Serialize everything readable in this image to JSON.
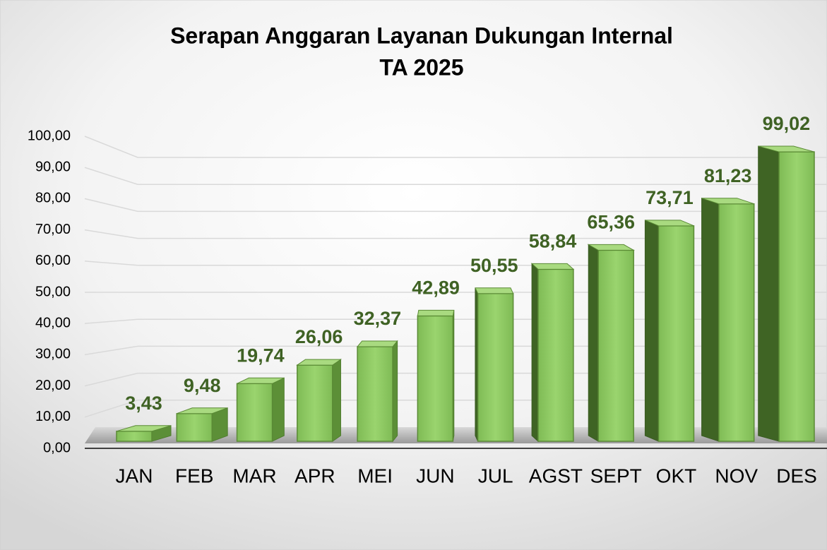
{
  "chart_data": {
    "type": "bar",
    "title": "Serapan Anggaran Layanan Dukungan Internal",
    "subtitle": "TA 2025",
    "categories": [
      "JAN",
      "FEB",
      "MAR",
      "APR",
      "MEI",
      "JUN",
      "JUL",
      "AGST",
      "SEPT",
      "OKT",
      "NOV",
      "DES"
    ],
    "values": [
      3.43,
      9.48,
      19.74,
      26.06,
      32.37,
      42.89,
      50.55,
      58.84,
      65.36,
      73.71,
      81.23,
      99.02
    ],
    "value_labels": [
      "3,43",
      "9,48",
      "19,74",
      "26,06",
      "32,37",
      "42,89",
      "50,55",
      "58,84",
      "65,36",
      "73,71",
      "81,23",
      "99,02"
    ],
    "color": "#8cc760",
    "ylim": [
      0,
      100
    ],
    "yticks": [
      {
        "value": 0,
        "label": "0,00"
      },
      {
        "value": 10,
        "label": "10,00"
      },
      {
        "value": 20,
        "label": "20,00"
      },
      {
        "value": 30,
        "label": "30,00"
      },
      {
        "value": 40,
        "label": "40,00"
      },
      {
        "value": 50,
        "label": "50,00"
      },
      {
        "value": 60,
        "label": "60,00"
      },
      {
        "value": 70,
        "label": "70,00"
      },
      {
        "value": 80,
        "label": "80,00"
      },
      {
        "value": 90,
        "label": "90,00"
      },
      {
        "value": 100,
        "label": "100,00"
      }
    ],
    "grid": true
  }
}
